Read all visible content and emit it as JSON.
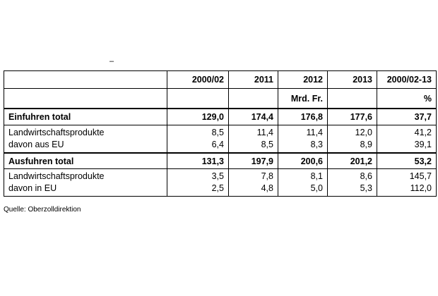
{
  "marker": "–",
  "table": {
    "columns": [
      "2000/02",
      "2011",
      "2012",
      "2013",
      "2000/02-13"
    ],
    "unit_label": "Mrd. Fr.",
    "percent_label": "%",
    "rows": [
      {
        "labels": [
          "Einfuhren total"
        ],
        "values": [
          [
            "129,0"
          ],
          [
            "174,4"
          ],
          [
            "176,8"
          ],
          [
            "177,6"
          ],
          [
            "37,7"
          ]
        ]
      },
      {
        "labels": [
          "Landwirtschaftsprodukte",
          "davon aus EU"
        ],
        "values": [
          [
            "8,5",
            "6,4"
          ],
          [
            "11,4",
            "8,5"
          ],
          [
            "11,4",
            "8,3"
          ],
          [
            "12,0",
            "8,9"
          ],
          [
            "41,2",
            "39,1"
          ]
        ]
      },
      {
        "labels": [
          "Ausfuhren total"
        ],
        "values": [
          [
            "131,3"
          ],
          [
            "197,9"
          ],
          [
            "200,6"
          ],
          [
            "201,2"
          ],
          [
            "53,2"
          ]
        ]
      },
      {
        "labels": [
          "Landwirtschaftsprodukte",
          "davon in EU"
        ],
        "values": [
          [
            "3,5",
            "2,5"
          ],
          [
            "7,8",
            "4,8"
          ],
          [
            "8,1",
            "5,0"
          ],
          [
            "8,6",
            "5,3"
          ],
          [
            "145,7",
            "112,0"
          ]
        ]
      }
    ]
  },
  "source": "Quelle: Oberzolldirektion"
}
